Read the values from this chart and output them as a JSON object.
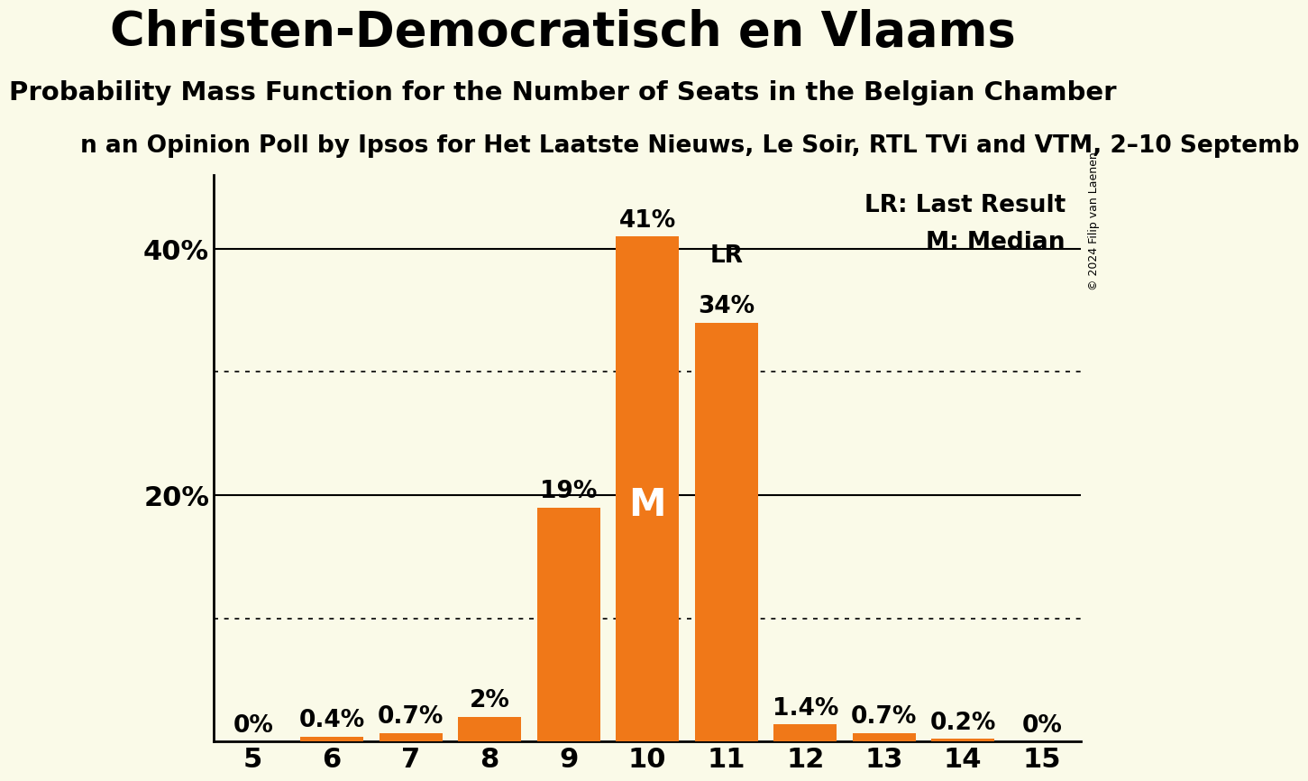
{
  "title": "Christen-Democratisch en Vlaams",
  "subtitle": "Probability Mass Function for the Number of Seats in the Belgian Chamber",
  "subtitle2_display": "n an Opinion Poll by Ipsos for Het Laatste Nieuws, Le Soir, RTL TVi and VTM, 2–10 Septemb",
  "copyright": "© 2024 Filip van Laenen",
  "seats": [
    5,
    6,
    7,
    8,
    9,
    10,
    11,
    12,
    13,
    14,
    15
  ],
  "probabilities": [
    0.0,
    0.4,
    0.7,
    2.0,
    19.0,
    41.0,
    34.0,
    1.4,
    0.7,
    0.2,
    0.0
  ],
  "bar_color": "#F07818",
  "background_color": "#FAFAE8",
  "text_color": "#000000",
  "median_seat": 10,
  "last_result_seat": 11,
  "ylim_max": 46,
  "solid_yticks": [
    20,
    40
  ],
  "dotted_yticks": [
    10,
    30
  ],
  "bar_label_fontsize": 19,
  "title_fontsize": 38,
  "subtitle_fontsize": 21,
  "subtitle2_fontsize": 19,
  "axis_tick_fontsize": 22,
  "legend_fontsize": 19,
  "median_label": "M",
  "lr_label": "LR",
  "legend_lr": "LR: Last Result",
  "legend_m": "M: Median"
}
